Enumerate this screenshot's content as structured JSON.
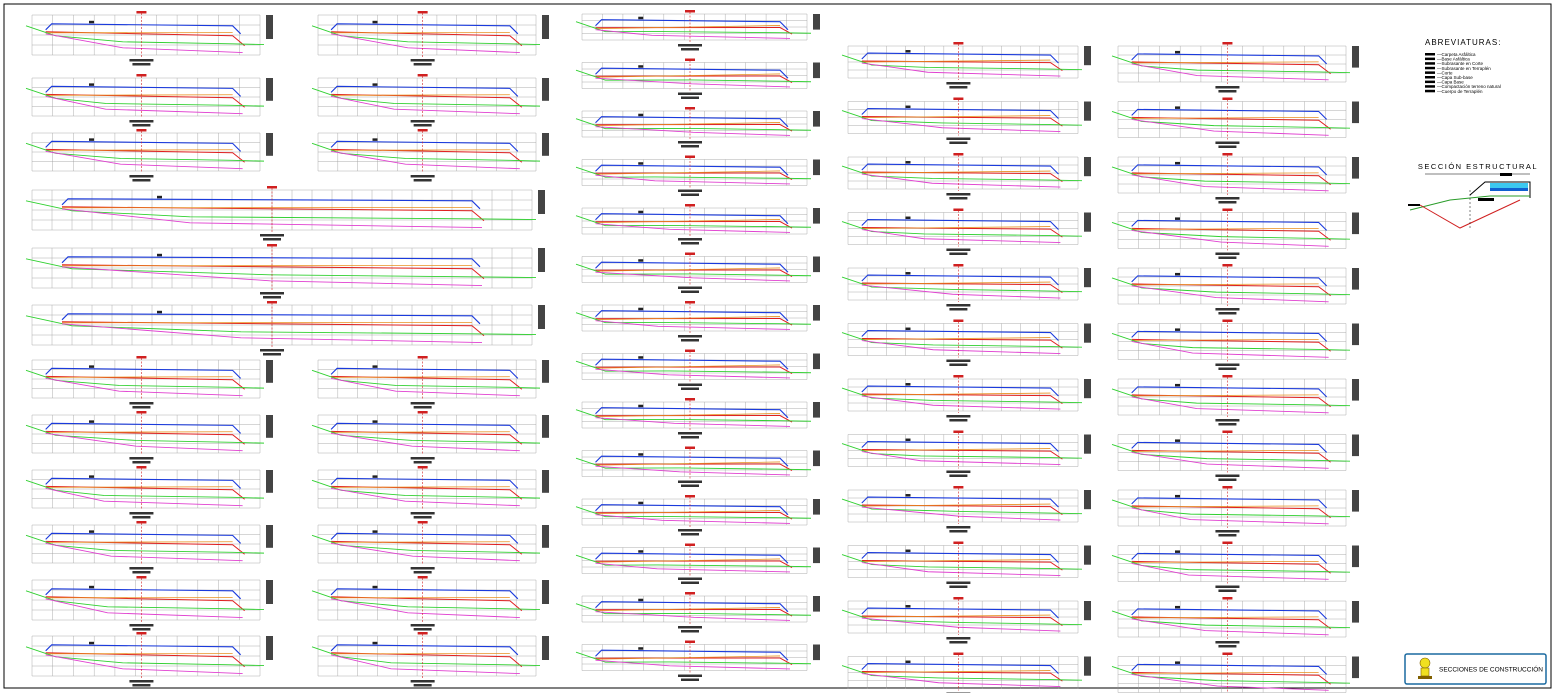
{
  "abbreviations": {
    "title": "ABREVIATURAS:",
    "items": [
      "—Carpeta Asfáltica",
      "—Base Asfáltica",
      "—Subrasante en Corte",
      "—Subrasante en Terraplén",
      "—Corte",
      "—Capa Sub-base",
      "—Capa Base",
      "—Compactación terreno natural",
      "—Cuerpo de Terraplén"
    ]
  },
  "structural_section": {
    "title": "SECCIÓN ESTRUCTURAL"
  },
  "title_block": {
    "label": "SECCIONES DE CONSTRUCCIÓN"
  }
}
